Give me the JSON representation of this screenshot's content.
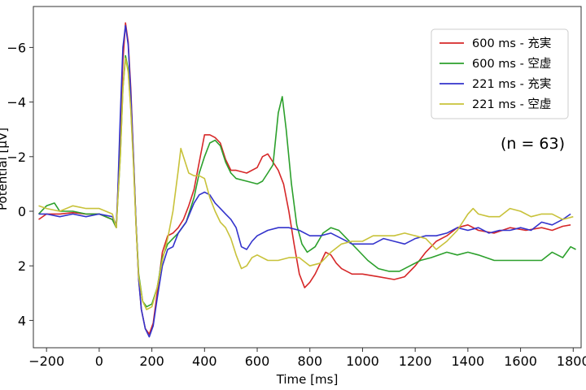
{
  "chart_data": {
    "type": "line",
    "xlabel": "Time [ms]",
    "ylabel": "Potential [μV]",
    "xlim": [
      -250,
      1830
    ],
    "ylim": [
      5.0,
      -7.5
    ],
    "y_inverted": true,
    "xticks": [
      -200,
      0,
      200,
      400,
      600,
      800,
      1000,
      1200,
      1400,
      1600,
      1800
    ],
    "yticks": [
      -6,
      -4,
      -2,
      0,
      2,
      4
    ],
    "grid": false,
    "legend_position": "top-right",
    "annotation": "(n = 63)",
    "series": [
      {
        "name": "600 ms - 充実",
        "color": "#d62728",
        "points": [
          [
            -230,
            0.3
          ],
          [
            -200,
            0.1
          ],
          [
            -150,
            0.1
          ],
          [
            -100,
            0.05
          ],
          [
            -50,
            0.1
          ],
          [
            0,
            0.1
          ],
          [
            50,
            0.3
          ],
          [
            65,
            0.6
          ],
          [
            70,
            -0.5
          ],
          [
            80,
            -3
          ],
          [
            90,
            -5.5
          ],
          [
            100,
            -6.9
          ],
          [
            110,
            -6.2
          ],
          [
            120,
            -4.5
          ],
          [
            130,
            -2
          ],
          [
            140,
            0.5
          ],
          [
            150,
            2.5
          ],
          [
            160,
            3.6
          ],
          [
            175,
            4.3
          ],
          [
            190,
            4.5
          ],
          [
            205,
            4.1
          ],
          [
            220,
            3
          ],
          [
            240,
            1.5
          ],
          [
            260,
            0.9
          ],
          [
            280,
            0.8
          ],
          [
            300,
            0.6
          ],
          [
            320,
            0.3
          ],
          [
            340,
            -0.2
          ],
          [
            360,
            -0.8
          ],
          [
            380,
            -1.8
          ],
          [
            400,
            -2.8
          ],
          [
            420,
            -2.8
          ],
          [
            440,
            -2.7
          ],
          [
            460,
            -2.5
          ],
          [
            480,
            -1.9
          ],
          [
            500,
            -1.5
          ],
          [
            520,
            -1.5
          ],
          [
            560,
            -1.4
          ],
          [
            600,
            -1.6
          ],
          [
            620,
            -2
          ],
          [
            640,
            -2.1
          ],
          [
            660,
            -1.8
          ],
          [
            680,
            -1.5
          ],
          [
            700,
            -1
          ],
          [
            720,
            0
          ],
          [
            740,
            1.2
          ],
          [
            760,
            2.3
          ],
          [
            780,
            2.8
          ],
          [
            800,
            2.6
          ],
          [
            820,
            2.3
          ],
          [
            840,
            1.9
          ],
          [
            860,
            1.5
          ],
          [
            880,
            1.6
          ],
          [
            900,
            1.9
          ],
          [
            920,
            2.1
          ],
          [
            960,
            2.3
          ],
          [
            1000,
            2.3
          ],
          [
            1060,
            2.4
          ],
          [
            1120,
            2.5
          ],
          [
            1160,
            2.4
          ],
          [
            1200,
            2
          ],
          [
            1240,
            1.5
          ],
          [
            1280,
            1.1
          ],
          [
            1320,
            0.9
          ],
          [
            1360,
            0.6
          ],
          [
            1400,
            0.5
          ],
          [
            1440,
            0.7
          ],
          [
            1500,
            0.8
          ],
          [
            1560,
            0.6
          ],
          [
            1620,
            0.7
          ],
          [
            1680,
            0.6
          ],
          [
            1720,
            0.7
          ],
          [
            1760,
            0.55
          ],
          [
            1790,
            0.5
          ]
        ]
      },
      {
        "name": "600 ms - 空虚",
        "color": "#2ca02c",
        "points": [
          [
            -230,
            0.1
          ],
          [
            -200,
            -0.2
          ],
          [
            -170,
            -0.3
          ],
          [
            -150,
            0
          ],
          [
            -100,
            0
          ],
          [
            -50,
            0.1
          ],
          [
            0,
            0.1
          ],
          [
            50,
            0.3
          ],
          [
            65,
            0.6
          ],
          [
            70,
            -0.3
          ],
          [
            80,
            -2
          ],
          [
            90,
            -4.5
          ],
          [
            100,
            -5.7
          ],
          [
            110,
            -5.2
          ],
          [
            120,
            -3.8
          ],
          [
            130,
            -1.8
          ],
          [
            140,
            0.5
          ],
          [
            150,
            2.3
          ],
          [
            165,
            3.3
          ],
          [
            180,
            3.5
          ],
          [
            200,
            3.4
          ],
          [
            220,
            2.8
          ],
          [
            240,
            1.7
          ],
          [
            260,
            1.2
          ],
          [
            280,
            1
          ],
          [
            300,
            0.8
          ],
          [
            330,
            0.4
          ],
          [
            360,
            -0.5
          ],
          [
            380,
            -1.4
          ],
          [
            400,
            -2
          ],
          [
            420,
            -2.5
          ],
          [
            440,
            -2.6
          ],
          [
            460,
            -2.4
          ],
          [
            480,
            -1.8
          ],
          [
            500,
            -1.4
          ],
          [
            520,
            -1.2
          ],
          [
            560,
            -1.1
          ],
          [
            600,
            -1
          ],
          [
            620,
            -1.1
          ],
          [
            640,
            -1.4
          ],
          [
            660,
            -1.7
          ],
          [
            680,
            -3.6
          ],
          [
            695,
            -4.2
          ],
          [
            710,
            -3
          ],
          [
            730,
            -1
          ],
          [
            750,
            0.5
          ],
          [
            770,
            1.2
          ],
          [
            790,
            1.5
          ],
          [
            820,
            1.3
          ],
          [
            850,
            0.8
          ],
          [
            880,
            0.6
          ],
          [
            910,
            0.7
          ],
          [
            940,
            1
          ],
          [
            980,
            1.4
          ],
          [
            1020,
            1.8
          ],
          [
            1060,
            2.1
          ],
          [
            1100,
            2.2
          ],
          [
            1140,
            2.2
          ],
          [
            1180,
            2
          ],
          [
            1220,
            1.8
          ],
          [
            1260,
            1.7
          ],
          [
            1320,
            1.5
          ],
          [
            1360,
            1.6
          ],
          [
            1400,
            1.5
          ],
          [
            1440,
            1.6
          ],
          [
            1500,
            1.8
          ],
          [
            1560,
            1.8
          ],
          [
            1620,
            1.8
          ],
          [
            1680,
            1.8
          ],
          [
            1720,
            1.5
          ],
          [
            1760,
            1.7
          ],
          [
            1790,
            1.3
          ],
          [
            1810,
            1.4
          ]
        ]
      },
      {
        "name": "221 ms - 充実",
        "color": "#3333cc",
        "points": [
          [
            -230,
            0.1
          ],
          [
            -200,
            0.1
          ],
          [
            -150,
            0.2
          ],
          [
            -100,
            0.1
          ],
          [
            -50,
            0.2
          ],
          [
            0,
            0.1
          ],
          [
            50,
            0.2
          ],
          [
            65,
            0.5
          ],
          [
            70,
            -0.5
          ],
          [
            80,
            -3.5
          ],
          [
            90,
            -6
          ],
          [
            100,
            -6.8
          ],
          [
            110,
            -6.1
          ],
          [
            120,
            -4.3
          ],
          [
            130,
            -2
          ],
          [
            140,
            0.5
          ],
          [
            150,
            2.5
          ],
          [
            160,
            3.6
          ],
          [
            175,
            4.3
          ],
          [
            190,
            4.6
          ],
          [
            205,
            4.2
          ],
          [
            220,
            3.2
          ],
          [
            240,
            2
          ],
          [
            260,
            1.4
          ],
          [
            280,
            1.3
          ],
          [
            300,
            0.8
          ],
          [
            330,
            0.4
          ],
          [
            360,
            -0.3
          ],
          [
            380,
            -0.6
          ],
          [
            400,
            -0.7
          ],
          [
            420,
            -0.6
          ],
          [
            440,
            -0.3
          ],
          [
            460,
            -0.1
          ],
          [
            480,
            0.1
          ],
          [
            500,
            0.3
          ],
          [
            520,
            0.6
          ],
          [
            540,
            1.3
          ],
          [
            560,
            1.4
          ],
          [
            580,
            1.1
          ],
          [
            600,
            0.9
          ],
          [
            640,
            0.7
          ],
          [
            680,
            0.6
          ],
          [
            720,
            0.6
          ],
          [
            760,
            0.7
          ],
          [
            800,
            0.9
          ],
          [
            840,
            0.9
          ],
          [
            880,
            0.8
          ],
          [
            920,
            1
          ],
          [
            960,
            1.2
          ],
          [
            1000,
            1.2
          ],
          [
            1040,
            1.2
          ],
          [
            1080,
            1
          ],
          [
            1120,
            1.1
          ],
          [
            1160,
            1.2
          ],
          [
            1200,
            1
          ],
          [
            1240,
            0.9
          ],
          [
            1280,
            0.9
          ],
          [
            1320,
            0.8
          ],
          [
            1360,
            0.6
          ],
          [
            1400,
            0.7
          ],
          [
            1440,
            0.6
          ],
          [
            1480,
            0.8
          ],
          [
            1520,
            0.7
          ],
          [
            1560,
            0.7
          ],
          [
            1600,
            0.6
          ],
          [
            1640,
            0.7
          ],
          [
            1680,
            0.4
          ],
          [
            1720,
            0.5
          ],
          [
            1760,
            0.3
          ],
          [
            1790,
            0.1
          ]
        ]
      },
      {
        "name": "221 ms - 空虚",
        "color": "#c8c23a",
        "points": [
          [
            -230,
            -0.2
          ],
          [
            -200,
            -0.1
          ],
          [
            -150,
            0
          ],
          [
            -100,
            -0.2
          ],
          [
            -50,
            -0.1
          ],
          [
            0,
            -0.1
          ],
          [
            50,
            0.1
          ],
          [
            65,
            0.6
          ],
          [
            70,
            -0.3
          ],
          [
            80,
            -2
          ],
          [
            90,
            -4.5
          ],
          [
            100,
            -5.6
          ],
          [
            110,
            -5.1
          ],
          [
            120,
            -3.7
          ],
          [
            130,
            -1.7
          ],
          [
            140,
            0.6
          ],
          [
            150,
            2.4
          ],
          [
            165,
            3.3
          ],
          [
            180,
            3.6
          ],
          [
            200,
            3.5
          ],
          [
            220,
            2.8
          ],
          [
            240,
            1.8
          ],
          [
            260,
            1
          ],
          [
            280,
            0
          ],
          [
            300,
            -1.5
          ],
          [
            310,
            -2.3
          ],
          [
            320,
            -2
          ],
          [
            340,
            -1.4
          ],
          [
            360,
            -1.3
          ],
          [
            380,
            -1.3
          ],
          [
            400,
            -1.2
          ],
          [
            420,
            -0.5
          ],
          [
            440,
            0
          ],
          [
            460,
            0.4
          ],
          [
            480,
            0.6
          ],
          [
            500,
            1
          ],
          [
            520,
            1.6
          ],
          [
            540,
            2.1
          ],
          [
            560,
            2
          ],
          [
            580,
            1.7
          ],
          [
            600,
            1.6
          ],
          [
            640,
            1.8
          ],
          [
            680,
            1.8
          ],
          [
            720,
            1.7
          ],
          [
            760,
            1.7
          ],
          [
            800,
            2
          ],
          [
            840,
            1.9
          ],
          [
            880,
            1.5
          ],
          [
            920,
            1.2
          ],
          [
            960,
            1.1
          ],
          [
            1000,
            1.1
          ],
          [
            1040,
            0.9
          ],
          [
            1080,
            0.9
          ],
          [
            1120,
            0.9
          ],
          [
            1160,
            0.8
          ],
          [
            1200,
            0.9
          ],
          [
            1240,
            1
          ],
          [
            1280,
            1.4
          ],
          [
            1320,
            1.1
          ],
          [
            1360,
            0.7
          ],
          [
            1400,
            0.1
          ],
          [
            1420,
            -0.1
          ],
          [
            1440,
            0.1
          ],
          [
            1480,
            0.2
          ],
          [
            1520,
            0.2
          ],
          [
            1560,
            -0.1
          ],
          [
            1600,
            0
          ],
          [
            1640,
            0.2
          ],
          [
            1680,
            0.1
          ],
          [
            1720,
            0.1
          ],
          [
            1760,
            0.3
          ],
          [
            1800,
            0.2
          ]
        ]
      }
    ]
  }
}
